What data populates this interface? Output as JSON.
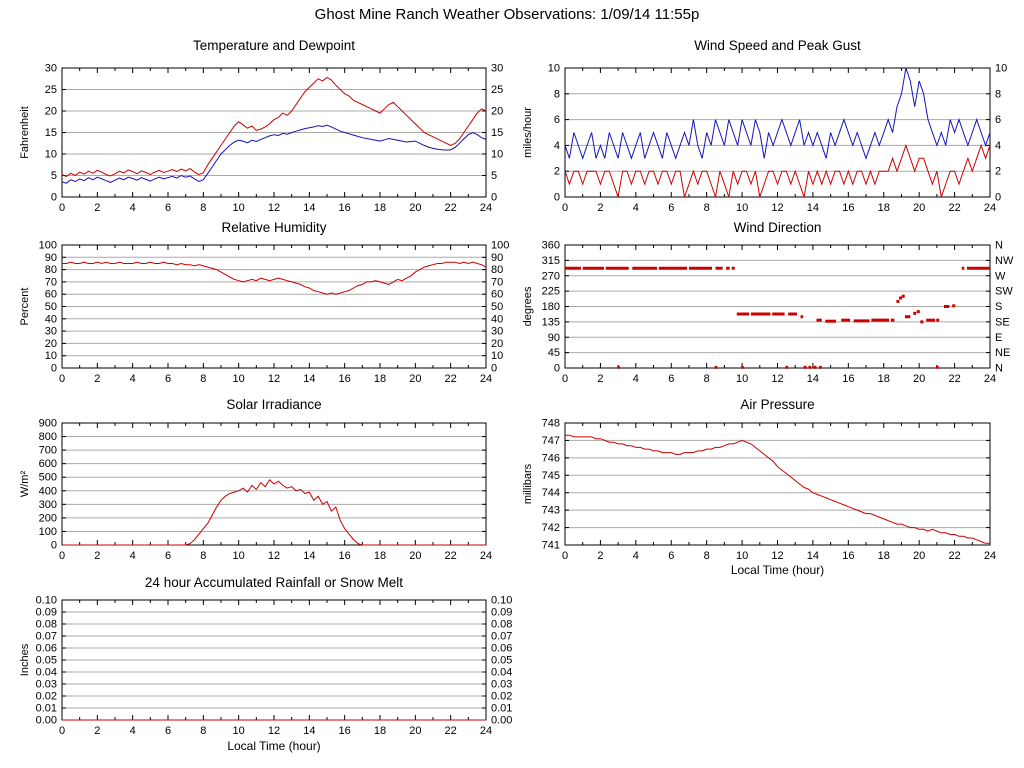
{
  "page": {
    "title": "Ghost Mine Ranch Weather Observations: 1/09/14 11:55p"
  },
  "chart_data": [
    {
      "id": "temperature-dewpoint",
      "type": "line",
      "title": "Temperature and Dewpoint",
      "ylabel": "Fahrenheit",
      "xlabel": "",
      "xlim": [
        0,
        24
      ],
      "xtick_step": 2,
      "xminor_step": 1,
      "ylim": [
        0,
        30
      ],
      "ytick_step": 5,
      "y_decimals": 0,
      "mirror_y_labels": true,
      "grid": "horizontal",
      "x_step": 0.25,
      "series": [
        {
          "name": "Temperature",
          "color": "#cc0000",
          "values": [
            5.2,
            4.8,
            5.5,
            5,
            5.8,
            5.3,
            6,
            5.5,
            6.2,
            5.8,
            5.2,
            4.9,
            5.4,
            6,
            5.6,
            6.3,
            5.9,
            5.4,
            6.1,
            5.7,
            5.2,
            5.8,
            6.2,
            5.7,
            6,
            6.4,
            5.9,
            6.5,
            6.1,
            6.6,
            5.8,
            5.2,
            5.6,
            7.5,
            9,
            10.5,
            12,
            13.5,
            15,
            16.5,
            17.5,
            16.8,
            16,
            16.5,
            15.5,
            15.8,
            16.3,
            17,
            18,
            18.5,
            19.5,
            19,
            20,
            21.5,
            23,
            24.5,
            25.5,
            26.5,
            27.5,
            27,
            27.8,
            27.2,
            26,
            25,
            24,
            23.5,
            22.5,
            22,
            21.5,
            21,
            20.5,
            20,
            19.5,
            20.5,
            21.5,
            22,
            21,
            20,
            19,
            18,
            17,
            16,
            15,
            14.5,
            14,
            13.5,
            13,
            12.5,
            12,
            12.5,
            13.5,
            15,
            16.5,
            18,
            19.5,
            20.5,
            20
          ]
        },
        {
          "name": "Dewpoint",
          "color": "#1414b8",
          "values": [
            3.5,
            3.2,
            4,
            3.6,
            4.2,
            3.8,
            4.5,
            4,
            4.6,
            4.2,
            3.8,
            3.4,
            3.9,
            4.4,
            4,
            4.6,
            4.3,
            3.9,
            4.5,
            4.1,
            3.7,
            4.2,
            4.6,
            4.2,
            4.5,
            4.8,
            4.4,
            5,
            4.6,
            4.9,
            4.2,
            3.6,
            4,
            5.5,
            7,
            8.5,
            10,
            11,
            12,
            12.8,
            13.2,
            13,
            12.6,
            13.2,
            12.9,
            13.4,
            13.8,
            14.2,
            14.5,
            14.3,
            14.8,
            14.6,
            15,
            15.3,
            15.6,
            15.9,
            16.1,
            16.3,
            16.6,
            16.4,
            16.7,
            16.3,
            15.8,
            15.3,
            15,
            14.7,
            14.4,
            14.1,
            13.8,
            13.6,
            13.4,
            13.2,
            13,
            13.3,
            13.6,
            13.4,
            13.2,
            13,
            12.8,
            12.9,
            13,
            12.5,
            12,
            11.6,
            11.3,
            11.1,
            11,
            10.9,
            11,
            11.5,
            12.5,
            13.5,
            14.5,
            15,
            14.5,
            13.8,
            13.4
          ]
        }
      ]
    },
    {
      "id": "wind-speed-gust",
      "type": "line",
      "title": "Wind Speed and Peak Gust",
      "ylabel": "miles/hour",
      "xlabel": "",
      "xlim": [
        0,
        24
      ],
      "xtick_step": 2,
      "xminor_step": 1,
      "ylim": [
        0,
        10
      ],
      "ytick_step": 2,
      "y_decimals": 0,
      "mirror_y_labels": true,
      "grid": "horizontal",
      "x_step": 0.25,
      "series": [
        {
          "name": "Wind Speed",
          "color": "#cc0000",
          "values": [
            2,
            1,
            2,
            2,
            1,
            2,
            2,
            2,
            1,
            2,
            2,
            1,
            0,
            2,
            2,
            1,
            2,
            2,
            1,
            2,
            2,
            1,
            2,
            2,
            1,
            2,
            2,
            0,
            1,
            2,
            1,
            2,
            2,
            1,
            0,
            2,
            1,
            0,
            2,
            1,
            2,
            2,
            1,
            2,
            0,
            1,
            2,
            2,
            1,
            2,
            2,
            1,
            2,
            1,
            0,
            2,
            1,
            2,
            1,
            2,
            1,
            2,
            2,
            1,
            2,
            1,
            2,
            2,
            1,
            2,
            1,
            2,
            2,
            2,
            3,
            2,
            3,
            4,
            3,
            2,
            3,
            3,
            2,
            1,
            2,
            0,
            1,
            2,
            2,
            1,
            2,
            3,
            2,
            3,
            4,
            3,
            4
          ]
        },
        {
          "name": "Peak Gust",
          "color": "#1414b8",
          "values": [
            4,
            3,
            5,
            4,
            3,
            4,
            5,
            3,
            4,
            3,
            5,
            4,
            3,
            5,
            4,
            3,
            4,
            5,
            3,
            4,
            5,
            4,
            3,
            5,
            4,
            3,
            4,
            5,
            4,
            6,
            4,
            3,
            5,
            4,
            6,
            5,
            4,
            6,
            5,
            4,
            6,
            5,
            4,
            6,
            5,
            3,
            5,
            4,
            5,
            6,
            5,
            4,
            5,
            6,
            4,
            5,
            4,
            5,
            4,
            3,
            5,
            4,
            5,
            6,
            5,
            4,
            5,
            4,
            3,
            4,
            5,
            4,
            5,
            6,
            5,
            7,
            8,
            10,
            9,
            7,
            9,
            8,
            6,
            5,
            4,
            5,
            4,
            6,
            5,
            6,
            5,
            4,
            5,
            6,
            5,
            4,
            5
          ]
        }
      ]
    },
    {
      "id": "relative-humidity",
      "type": "line",
      "title": "Relative Humidity",
      "ylabel": "Percent",
      "xlabel": "",
      "xlim": [
        0,
        24
      ],
      "xtick_step": 2,
      "xminor_step": 1,
      "ylim": [
        0,
        100
      ],
      "ytick_step": 10,
      "y_decimals": 0,
      "mirror_y_labels": true,
      "grid": "horizontal",
      "x_step": 0.25,
      "series": [
        {
          "name": "Relative Humidity",
          "color": "#cc0000",
          "values": [
            85,
            85,
            86,
            85,
            85,
            86,
            85,
            85,
            86,
            85,
            86,
            85,
            85,
            86,
            85,
            85,
            85,
            86,
            85,
            85,
            86,
            85,
            85,
            86,
            85,
            85,
            84,
            85,
            84,
            84,
            83,
            84,
            83,
            82,
            81,
            80,
            78,
            76,
            74,
            72,
            71,
            70,
            71,
            72,
            71,
            73,
            72,
            71,
            72,
            73,
            72,
            71,
            70,
            69,
            68,
            66,
            65,
            63,
            62,
            61,
            60,
            61,
            60,
            61,
            62,
            63,
            65,
            67,
            68,
            70,
            70,
            71,
            70,
            69,
            68,
            70,
            72,
            71,
            73,
            75,
            78,
            80,
            82,
            83,
            84,
            85,
            85,
            86,
            86,
            86,
            85,
            86,
            85,
            86,
            85,
            84,
            82
          ]
        }
      ]
    },
    {
      "id": "wind-direction",
      "type": "scatter",
      "title": "Wind Direction",
      "ylabel": "degrees",
      "xlabel": "",
      "xlim": [
        0,
        24
      ],
      "xtick_step": 2,
      "xminor_step": 1,
      "ylim": [
        0,
        360
      ],
      "ytick_step": 45,
      "y_decimals": 0,
      "mirror_y_labels": false,
      "grid": "horizontal",
      "right_labels": [
        "N",
        "NW",
        "W",
        "SW",
        "S",
        "SE",
        "E",
        "NE",
        "N"
      ],
      "color": "#cc0000",
      "segments": [
        [
          0,
          0.9,
          292
        ],
        [
          1,
          2.2,
          292
        ],
        [
          2.3,
          3.6,
          292
        ],
        [
          3.8,
          5.2,
          292
        ],
        [
          5.3,
          6.9,
          292
        ],
        [
          7,
          8.3,
          292
        ],
        [
          8.5,
          8.9,
          292
        ],
        [
          9.1,
          9.3,
          292
        ],
        [
          9.45,
          9.55,
          292
        ],
        [
          22.4,
          22.55,
          292
        ],
        [
          22.7,
          24,
          292
        ],
        [
          9.7,
          10.4,
          158
        ],
        [
          10.5,
          11.6,
          158
        ],
        [
          11.7,
          12.4,
          158
        ],
        [
          12.6,
          13.1,
          158
        ],
        [
          13.3,
          13.45,
          150
        ],
        [
          14.2,
          14.5,
          140
        ],
        [
          14.7,
          15.3,
          137
        ],
        [
          15.6,
          16.1,
          140
        ],
        [
          16.3,
          17.2,
          138
        ],
        [
          17.3,
          18.3,
          140
        ],
        [
          18.4,
          18.6,
          140
        ],
        [
          18.75,
          18.85,
          195
        ],
        [
          18.9,
          19,
          205
        ],
        [
          19.05,
          19.15,
          210
        ],
        [
          19.2,
          19.5,
          150
        ],
        [
          19.7,
          19.8,
          160
        ],
        [
          19.9,
          20,
          165
        ],
        [
          20.1,
          20.2,
          135
        ],
        [
          20.4,
          20.9,
          140
        ],
        [
          21,
          21.1,
          140
        ],
        [
          21.4,
          21.7,
          180
        ],
        [
          21.9,
          22,
          182
        ],
        [
          2.95,
          3.1,
          2
        ],
        [
          8.45,
          8.6,
          2
        ],
        [
          9.95,
          10.1,
          2
        ],
        [
          12.45,
          12.6,
          2
        ],
        [
          13.5,
          13.62,
          2
        ],
        [
          13.75,
          13.9,
          2
        ],
        [
          14.05,
          14.2,
          2
        ],
        [
          14.35,
          14.5,
          2
        ],
        [
          20.95,
          21.1,
          2
        ]
      ]
    },
    {
      "id": "solar-irradiance",
      "type": "line",
      "title": "Solar Irradiance",
      "ylabel": "W/m²",
      "xlabel": "",
      "xlim": [
        0,
        24
      ],
      "xtick_step": 2,
      "xminor_step": 1,
      "ylim": [
        0,
        900
      ],
      "ytick_step": 100,
      "y_decimals": 0,
      "mirror_y_labels": false,
      "grid": "horizontal",
      "x_step": 0.25,
      "series": [
        {
          "name": "Solar Irradiance",
          "color": "#cc0000",
          "values": [
            0,
            0,
            0,
            0,
            0,
            0,
            0,
            0,
            0,
            0,
            0,
            0,
            0,
            0,
            0,
            0,
            0,
            0,
            0,
            0,
            0,
            0,
            0,
            0,
            0,
            0,
            0,
            0,
            0,
            10,
            40,
            80,
            120,
            160,
            220,
            280,
            330,
            360,
            380,
            390,
            400,
            420,
            390,
            440,
            410,
            460,
            430,
            480,
            450,
            470,
            440,
            420,
            430,
            400,
            410,
            380,
            390,
            330,
            360,
            300,
            320,
            250,
            280,
            180,
            120,
            80,
            40,
            10,
            0,
            0,
            0,
            0,
            0,
            0,
            0,
            0,
            0,
            0,
            0,
            0,
            0,
            0,
            0,
            0,
            0,
            0,
            0,
            0,
            0,
            0,
            0,
            0,
            0,
            0,
            0,
            0,
            0
          ]
        }
      ]
    },
    {
      "id": "air-pressure",
      "type": "line",
      "title": "Air Pressure",
      "ylabel": "millibars",
      "xlabel": "Local Time (hour)",
      "xlim": [
        0,
        24
      ],
      "xtick_step": 2,
      "xminor_step": 1,
      "ylim": [
        741,
        748
      ],
      "ytick_step": 1,
      "y_decimals": 0,
      "mirror_y_labels": false,
      "grid": "horizontal",
      "x_step": 0.25,
      "series": [
        {
          "name": "Air Pressure",
          "color": "#cc0000",
          "values": [
            747.3,
            747.3,
            747.2,
            747.2,
            747.2,
            747.2,
            747.2,
            747.1,
            747.1,
            747,
            746.9,
            746.9,
            746.8,
            746.8,
            746.7,
            746.7,
            746.6,
            746.6,
            746.5,
            746.5,
            746.4,
            746.4,
            746.3,
            746.3,
            746.3,
            746.2,
            746.2,
            746.3,
            746.3,
            746.3,
            746.4,
            746.4,
            746.5,
            746.5,
            746.6,
            746.6,
            746.7,
            746.8,
            746.8,
            746.9,
            747,
            746.9,
            746.8,
            746.6,
            746.4,
            746.2,
            746,
            745.8,
            745.5,
            745.3,
            745.1,
            744.9,
            744.7,
            744.5,
            744.3,
            744.2,
            744,
            743.9,
            743.8,
            743.7,
            743.6,
            743.5,
            743.4,
            743.3,
            743.2,
            743.1,
            743,
            742.9,
            742.8,
            742.8,
            742.7,
            742.6,
            742.5,
            742.4,
            742.3,
            742.2,
            742.2,
            742.1,
            742,
            742,
            741.9,
            741.9,
            741.8,
            741.9,
            741.8,
            741.7,
            741.7,
            741.6,
            741.6,
            741.5,
            741.5,
            741.4,
            741.4,
            741.3,
            741.2,
            741.1,
            741.1
          ]
        }
      ]
    },
    {
      "id": "rainfall",
      "type": "line",
      "title": "24 hour Accumulated Rainfall or Snow Melt",
      "ylabel": "Inches",
      "xlabel": "Local Time (hour)",
      "xlim": [
        0,
        24
      ],
      "xtick_step": 2,
      "xminor_step": 1,
      "ylim": [
        0,
        0.1
      ],
      "ytick_step": 0.01,
      "y_decimals": 2,
      "mirror_y_labels": true,
      "grid": "horizontal",
      "series": [
        {
          "name": "Accumulated Rainfall",
          "color": "#cc0000",
          "x": [
            0,
            24
          ],
          "values": [
            0,
            0
          ]
        }
      ]
    }
  ]
}
